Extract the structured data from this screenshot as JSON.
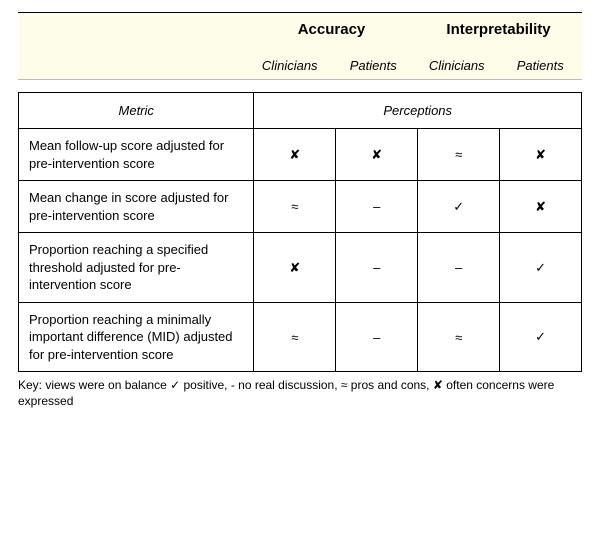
{
  "header": {
    "group1": "Accuracy",
    "group2": "Interpretability",
    "sub1": "Clinicians",
    "sub2": "Patients",
    "sub3": "Clinicians",
    "sub4": "Patients"
  },
  "table": {
    "metric_header": "Metric",
    "perceptions_header": "Perceptions",
    "rows": [
      {
        "metric": "Mean follow-up score adjusted for pre-intervention score",
        "c1": "✘",
        "c2": "✘",
        "c3": "≈",
        "c4": "✘"
      },
      {
        "metric": "Mean change in score adjusted for pre-intervention score",
        "c1": "≈",
        "c2": "–",
        "c3": "✓",
        "c4": "✘"
      },
      {
        "metric": "Proportion reaching a specified threshold adjusted for pre-intervention score",
        "c1": "✘",
        "c2": "–",
        "c3": "–",
        "c4": "✓"
      },
      {
        "metric": "Proportion reaching a minimally important difference (MID) adjusted for pre-intervention score",
        "c1": "≈",
        "c2": "–",
        "c3": "≈",
        "c4": "✓"
      }
    ]
  },
  "key": {
    "text": "Key: views were on balance ✓ positive, - no real  discussion,  ≈ pros and cons, ✘ often concerns were expressed"
  },
  "colors": {
    "header_bg": "#fdfde9",
    "border": "#000000",
    "bg": "#ffffff"
  }
}
